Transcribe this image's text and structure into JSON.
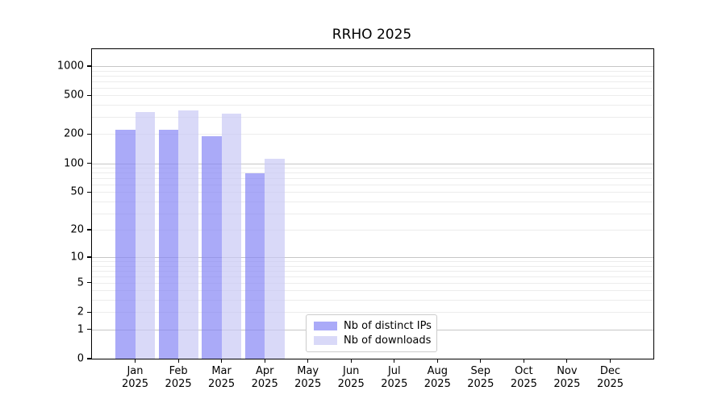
{
  "chart_data": {
    "type": "bar",
    "title": "RRHO 2025",
    "categories": [
      "Jan 2025",
      "Feb 2025",
      "Mar 2025",
      "Apr 2025",
      "May 2025",
      "Jun 2025",
      "Jul 2025",
      "Aug 2025",
      "Sep 2025",
      "Oct 2025",
      "Nov 2025",
      "Dec 2025"
    ],
    "series": [
      {
        "name": "Nb of distinct IPs",
        "color": "rgba(134,134,245,0.7)",
        "values": [
          220,
          223,
          189,
          78,
          null,
          null,
          null,
          null,
          null,
          null,
          null,
          null
        ]
      },
      {
        "name": "Nb of downloads",
        "color": "rgba(201,201,245,0.7)",
        "values": [
          340,
          350,
          325,
          112,
          null,
          null,
          null,
          null,
          null,
          null,
          null,
          null
        ]
      }
    ],
    "yscale": "log1p",
    "yticks": [
      0,
      1,
      2,
      5,
      10,
      20,
      50,
      100,
      200,
      500,
      1000
    ],
    "ylim": [
      0,
      1491
    ],
    "grid": {
      "major": [
        1,
        10,
        100,
        1000
      ],
      "minor": [
        2,
        3,
        4,
        5,
        6,
        7,
        8,
        9,
        20,
        30,
        40,
        50,
        60,
        70,
        80,
        90,
        200,
        300,
        400,
        500,
        600,
        700,
        800,
        900
      ]
    },
    "legend_position": "lower center",
    "colors": {
      "grid_major": "#c6c6c6",
      "grid_minor": "#ececec",
      "spine": "#000000"
    }
  }
}
